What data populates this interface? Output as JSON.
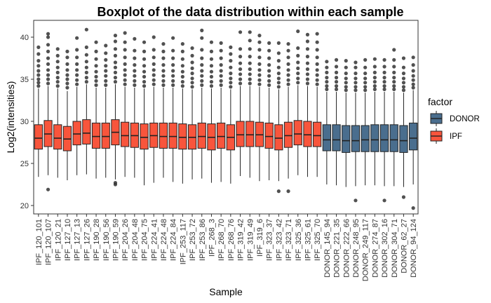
{
  "chart_data": {
    "type": "box",
    "title": "Boxplot of the data distribution within each sample",
    "xlabel": "Sample",
    "ylabel": "Log2(intensities)",
    "ylim": [
      19,
      42
    ],
    "yticks": [
      20,
      25,
      30,
      35,
      40
    ],
    "grid": false,
    "legend": {
      "title": "factor",
      "position": "right",
      "entries": [
        {
          "name": "DONOR",
          "color": "#4A6E8E"
        },
        {
          "name": "IPF",
          "color": "#F8553C"
        }
      ]
    },
    "series": [
      {
        "name": "IPF_120_101",
        "factor": "IPF",
        "q1": 26.7,
        "median": 28.0,
        "q3": 29.6,
        "whisker_low": 23.4,
        "whisker_high": 33.9,
        "outliers_high": [
          34.2,
          34.6,
          35.0,
          35.5,
          36.0,
          36.6,
          37.2,
          38.0,
          38.8
        ],
        "outliers_low": []
      },
      {
        "name": "IPF_120_107",
        "factor": "IPF",
        "q1": 27.0,
        "median": 28.5,
        "q3": 30.1,
        "whisker_low": 23.6,
        "whisker_high": 34.2,
        "outliers_high": [
          34.5,
          35.0,
          35.5,
          36.1,
          36.8,
          37.5,
          38.3,
          39.1,
          40.0,
          40.4
        ],
        "outliers_low": [
          21.9
        ]
      },
      {
        "name": "IPF_120_21",
        "factor": "IPF",
        "q1": 26.7,
        "median": 28.0,
        "q3": 29.6,
        "whisker_low": 23.3,
        "whisker_high": 33.9,
        "outliers_high": [
          34.2,
          34.7,
          35.2,
          35.8,
          36.4,
          37.1,
          37.8,
          38.6
        ],
        "outliers_low": []
      },
      {
        "name": "IPF_127_10",
        "factor": "IPF",
        "q1": 26.5,
        "median": 27.9,
        "q3": 29.4,
        "whisker_low": 23.0,
        "whisker_high": 33.6,
        "outliers_high": [
          34.0,
          34.5,
          35.0,
          35.5,
          36.1,
          36.8,
          37.6,
          38.3
        ],
        "outliers_low": []
      },
      {
        "name": "IPF_127_13",
        "factor": "IPF",
        "q1": 27.2,
        "median": 28.5,
        "q3": 30.0,
        "whisker_low": 23.6,
        "whisker_high": 34.1,
        "outliers_high": [
          34.4,
          34.9,
          35.5,
          36.1,
          36.8,
          37.6,
          38.5,
          39.9
        ],
        "outliers_low": []
      },
      {
        "name": "IPF_127_26",
        "factor": "IPF",
        "q1": 27.3,
        "median": 28.6,
        "q3": 30.2,
        "whisker_low": 23.7,
        "whisker_high": 34.4,
        "outliers_high": [
          34.7,
          35.2,
          35.8,
          36.4,
          37.1,
          37.9,
          38.8,
          40.9
        ],
        "outliers_low": []
      },
      {
        "name": "IPF_190_28",
        "factor": "IPF",
        "q1": 26.8,
        "median": 28.2,
        "q3": 29.8,
        "whisker_low": 23.2,
        "whisker_high": 34.0,
        "outliers_high": [
          34.3,
          34.8,
          35.3,
          35.9,
          36.6,
          37.4,
          38.3,
          39.4
        ],
        "outliers_low": []
      },
      {
        "name": "IPF_190_56",
        "factor": "IPF",
        "q1": 26.8,
        "median": 28.2,
        "q3": 29.8,
        "whisker_low": 23.3,
        "whisker_high": 34.0,
        "outliers_high": [
          34.3,
          34.8,
          35.4,
          36.0,
          36.6,
          37.3,
          38.1,
          39.0
        ],
        "outliers_low": []
      },
      {
        "name": "IPF_190_59",
        "factor": "IPF",
        "q1": 27.2,
        "median": 28.7,
        "q3": 30.2,
        "whisker_low": 23.1,
        "whisker_high": 34.4,
        "outliers_high": [
          34.7,
          35.2,
          35.8,
          36.4,
          37.0,
          37.8,
          38.6,
          39.5,
          40.2
        ],
        "outliers_low": [
          22.5,
          22.7
        ]
      },
      {
        "name": "IPF_204_26",
        "factor": "IPF",
        "q1": 27.0,
        "median": 28.3,
        "q3": 29.9,
        "whisker_low": 23.4,
        "whisker_high": 34.1,
        "outliers_high": [
          34.4,
          34.9,
          35.5,
          36.1,
          36.8,
          37.6,
          38.5,
          39.4,
          40.5
        ],
        "outliers_low": []
      },
      {
        "name": "IPF_204_48",
        "factor": "IPF",
        "q1": 26.9,
        "median": 28.3,
        "q3": 29.8,
        "whisker_low": 23.3,
        "whisker_high": 34.0,
        "outliers_high": [
          34.3,
          34.8,
          35.4,
          36.0,
          36.7,
          37.5,
          38.4,
          39.8
        ],
        "outliers_low": []
      },
      {
        "name": "IPF_204_75",
        "factor": "IPF",
        "q1": 26.7,
        "median": 28.1,
        "q3": 29.7,
        "whisker_low": 22.4,
        "whisker_high": 33.9,
        "outliers_high": [
          34.2,
          34.7,
          35.3,
          35.9,
          36.6,
          37.4,
          38.3,
          39.4
        ],
        "outliers_low": []
      },
      {
        "name": "IPF_224_41",
        "factor": "IPF",
        "q1": 26.9,
        "median": 28.3,
        "q3": 29.8,
        "whisker_low": 22.7,
        "whisker_high": 34.1,
        "outliers_high": [
          34.4,
          34.9,
          35.5,
          36.1,
          36.8,
          37.6,
          38.5,
          40.0
        ],
        "outliers_low": []
      },
      {
        "name": "IPF_224_48",
        "factor": "IPF",
        "q1": 26.8,
        "median": 28.2,
        "q3": 29.8,
        "whisker_low": 23.3,
        "whisker_high": 34.0,
        "outliers_high": [
          34.3,
          34.8,
          35.4,
          36.0,
          36.7,
          37.5,
          38.3,
          39.2
        ],
        "outliers_low": []
      },
      {
        "name": "IPF_224_84",
        "factor": "IPF",
        "q1": 26.8,
        "median": 28.2,
        "q3": 29.8,
        "whisker_low": 22.8,
        "whisker_high": 34.0,
        "outliers_high": [
          34.3,
          34.8,
          35.4,
          36.0,
          36.7,
          37.5,
          38.4,
          39.9
        ],
        "outliers_low": []
      },
      {
        "name": "IPF_253_117",
        "factor": "IPF",
        "q1": 26.7,
        "median": 28.1,
        "q3": 29.7,
        "whisker_low": 22.6,
        "whisker_high": 33.9,
        "outliers_high": [
          34.2,
          34.7,
          35.3,
          35.9,
          36.6,
          37.4,
          38.3,
          39.2
        ],
        "outliers_low": []
      },
      {
        "name": "IPF_253_72",
        "factor": "IPF",
        "q1": 26.7,
        "median": 28.1,
        "q3": 29.6,
        "whisker_low": 23.1,
        "whisker_high": 33.8,
        "outliers_high": [
          34.1,
          34.6,
          35.1,
          35.7,
          36.3,
          37.0,
          37.8,
          38.7
        ],
        "outliers_low": []
      },
      {
        "name": "IPF_253_86",
        "factor": "IPF",
        "q1": 26.8,
        "median": 28.2,
        "q3": 29.8,
        "whisker_low": 23.2,
        "whisker_high": 34.0,
        "outliers_high": [
          34.3,
          34.8,
          35.4,
          36.0,
          36.7,
          37.5,
          38.5,
          39.9,
          40.8
        ],
        "outliers_low": []
      },
      {
        "name": "IPF_268_3",
        "factor": "IPF",
        "q1": 26.6,
        "median": 28.1,
        "q3": 29.7,
        "whisker_low": 22.7,
        "whisker_high": 33.9,
        "outliers_high": [
          34.2,
          34.7,
          35.3,
          35.9,
          36.6,
          37.4,
          38.3,
          39.4
        ],
        "outliers_low": []
      },
      {
        "name": "IPF_268_70",
        "factor": "IPF",
        "q1": 26.8,
        "median": 28.2,
        "q3": 29.8,
        "whisker_low": 22.8,
        "whisker_high": 34.0,
        "outliers_high": [
          34.3,
          34.8,
          35.4,
          36.0,
          36.7,
          37.5,
          38.4,
          39.3
        ],
        "outliers_low": []
      },
      {
        "name": "IPF_268_76",
        "factor": "IPF",
        "q1": 26.6,
        "median": 28.1,
        "q3": 29.6,
        "whisker_low": 22.6,
        "whisker_high": 33.8,
        "outliers_high": [
          34.1,
          34.6,
          35.1,
          35.7,
          36.4,
          37.2,
          38.0,
          38.8
        ],
        "outliers_low": []
      },
      {
        "name": "IPF_319_42",
        "factor": "IPF",
        "q1": 27.0,
        "median": 28.4,
        "q3": 30.0,
        "whisker_low": 23.5,
        "whisker_high": 34.2,
        "outliers_high": [
          34.5,
          35.0,
          35.6,
          36.2,
          36.9,
          37.7,
          38.6,
          40.6
        ],
        "outliers_low": []
      },
      {
        "name": "IPF_319_49",
        "factor": "IPF",
        "q1": 27.0,
        "median": 28.4,
        "q3": 30.0,
        "whisker_low": 23.3,
        "whisker_high": 34.2,
        "outliers_high": [
          34.5,
          35.0,
          35.6,
          36.2,
          36.9,
          37.7,
          38.6,
          39.6,
          40.6
        ],
        "outliers_low": []
      },
      {
        "name": "IPF_319_6",
        "factor": "IPF",
        "q1": 27.0,
        "median": 28.4,
        "q3": 29.9,
        "whisker_low": 22.9,
        "whisker_high": 34.1,
        "outliers_high": [
          34.4,
          34.9,
          35.5,
          36.1,
          36.8,
          37.6,
          38.5,
          39.4,
          40.2
        ],
        "outliers_low": []
      },
      {
        "name": "IPF_323_37",
        "factor": "IPF",
        "q1": 26.8,
        "median": 28.2,
        "q3": 29.8,
        "whisker_low": 23.0,
        "whisker_high": 34.0,
        "outliers_high": [
          34.3,
          34.8,
          35.4,
          36.0,
          36.7,
          37.5,
          38.4,
          39.3
        ],
        "outliers_low": []
      },
      {
        "name": "IPF_323_42",
        "factor": "IPF",
        "q1": 26.6,
        "median": 28.0,
        "q3": 29.6,
        "whisker_low": 22.9,
        "whisker_high": 33.8,
        "outliers_high": [
          34.1,
          34.6,
          35.1,
          35.7,
          36.4,
          37.2,
          38.1,
          39.3
        ],
        "outliers_low": [
          21.7
        ]
      },
      {
        "name": "IPF_323_71",
        "factor": "IPF",
        "q1": 26.9,
        "median": 28.3,
        "q3": 29.9,
        "whisker_low": 23.2,
        "whisker_high": 34.1,
        "outliers_high": [
          34.4,
          34.9,
          35.5,
          36.1,
          36.8,
          37.6,
          38.4,
          39.2
        ],
        "outliers_low": [
          21.7
        ]
      },
      {
        "name": "IPF_325_36",
        "factor": "IPF",
        "q1": 27.2,
        "median": 28.5,
        "q3": 30.1,
        "whisker_low": 23.6,
        "whisker_high": 34.3,
        "outliers_high": [
          34.6,
          35.1,
          35.7,
          36.3,
          37.0,
          37.8,
          38.7,
          40.7
        ],
        "outliers_low": []
      },
      {
        "name": "IPF_325_61",
        "factor": "IPF",
        "q1": 27.0,
        "median": 28.4,
        "q3": 30.0,
        "whisker_low": 23.4,
        "whisker_high": 34.2,
        "outliers_high": [
          34.5,
          35.0,
          35.6,
          36.2,
          36.9,
          37.7,
          38.6,
          39.5,
          40.3
        ],
        "outliers_low": []
      },
      {
        "name": "IPF_325_70",
        "factor": "IPF",
        "q1": 27.0,
        "median": 28.3,
        "q3": 29.9,
        "whisker_low": 23.4,
        "whisker_high": 34.1,
        "outliers_high": [
          34.4,
          34.9,
          35.5,
          36.1,
          36.8,
          37.6,
          38.5,
          39.4,
          40.4
        ],
        "outliers_low": []
      },
      {
        "name": "DONOR_145_94",
        "factor": "DONOR",
        "q1": 26.5,
        "median": 27.8,
        "q3": 29.6,
        "whisker_low": 22.5,
        "whisker_high": 33.5,
        "outliers_high": [
          33.8,
          34.2,
          34.7,
          35.2,
          35.8,
          36.4,
          37.1
        ],
        "outliers_low": []
      },
      {
        "name": "DONOR_221_35",
        "factor": "DONOR",
        "q1": 26.5,
        "median": 27.8,
        "q3": 29.6,
        "whisker_low": 22.4,
        "whisker_high": 33.5,
        "outliers_high": [
          33.8,
          34.2,
          34.7,
          35.2,
          35.8,
          36.5,
          37.3
        ],
        "outliers_low": []
      },
      {
        "name": "DONOR_222_66",
        "factor": "DONOR",
        "q1": 26.3,
        "median": 27.7,
        "q3": 29.5,
        "whisker_low": 22.2,
        "whisker_high": 33.4,
        "outliers_high": [
          33.7,
          34.1,
          34.6,
          35.1,
          35.7,
          36.4,
          37.2
        ],
        "outliers_low": []
      },
      {
        "name": "DONOR_248_95",
        "factor": "DONOR",
        "q1": 26.4,
        "median": 27.7,
        "q3": 29.5,
        "whisker_low": 22.3,
        "whisker_high": 33.4,
        "outliers_high": [
          33.7,
          34.1,
          34.6,
          35.1,
          35.7,
          36.4,
          37.0
        ],
        "outliers_low": [
          20.6
        ]
      },
      {
        "name": "DONOR_249_117",
        "factor": "DONOR",
        "q1": 26.4,
        "median": 27.8,
        "q3": 29.5,
        "whisker_low": 22.4,
        "whisker_high": 33.4,
        "outliers_high": [
          33.7,
          34.1,
          34.6,
          35.1,
          35.7,
          36.4,
          37.3
        ],
        "outliers_low": []
      },
      {
        "name": "DONOR_274_87",
        "factor": "DONOR",
        "q1": 26.4,
        "median": 27.8,
        "q3": 29.6,
        "whisker_low": 22.4,
        "whisker_high": 33.5,
        "outliers_high": [
          33.8,
          34.2,
          34.7,
          35.2,
          35.8,
          36.5,
          37.4
        ],
        "outliers_low": []
      },
      {
        "name": "DONOR_302_16",
        "factor": "DONOR",
        "q1": 26.4,
        "median": 27.8,
        "q3": 29.6,
        "whisker_low": 22.3,
        "whisker_high": 33.5,
        "outliers_high": [
          33.8,
          34.2,
          34.7,
          35.2,
          35.8,
          36.5,
          37.3
        ],
        "outliers_low": [
          20.6
        ]
      },
      {
        "name": "DONOR_304_71",
        "factor": "DONOR",
        "q1": 26.4,
        "median": 27.8,
        "q3": 29.6,
        "whisker_low": 22.3,
        "whisker_high": 33.5,
        "outliers_high": [
          33.8,
          34.2,
          34.7,
          35.2,
          35.8,
          36.5,
          37.3,
          38.5
        ],
        "outliers_low": []
      },
      {
        "name": "DONOR_62_27",
        "factor": "DONOR",
        "q1": 26.3,
        "median": 27.7,
        "q3": 29.5,
        "whisker_low": 22.2,
        "whisker_high": 33.4,
        "outliers_high": [
          33.7,
          34.1,
          34.6,
          35.1,
          35.7,
          36.4,
          37.5
        ],
        "outliers_low": [
          21.0
        ]
      },
      {
        "name": "DONOR_94_124",
        "factor": "DONOR",
        "q1": 26.6,
        "median": 28.0,
        "q3": 29.8,
        "whisker_low": 22.5,
        "whisker_high": 33.7,
        "outliers_high": [
          34.0,
          34.4,
          34.9,
          35.4,
          36.0,
          36.7,
          37.6
        ],
        "outliers_low": [
          19.7
        ]
      }
    ]
  }
}
